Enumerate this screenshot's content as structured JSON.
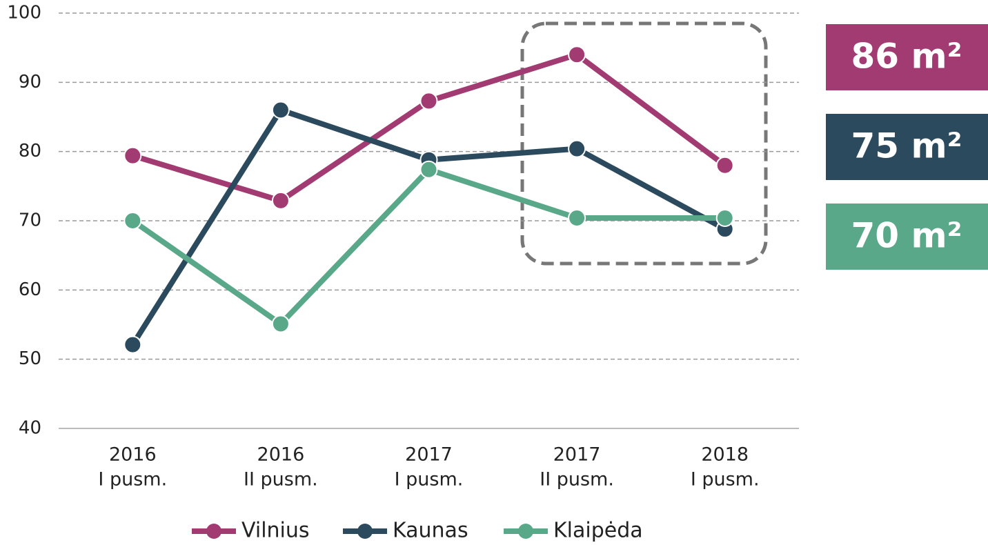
{
  "chart_data": {
    "type": "line",
    "categories": [
      [
        "2016",
        "I pusm."
      ],
      [
        "2016",
        "II pusm."
      ],
      [
        "2017",
        "I pusm."
      ],
      [
        "2017",
        "II pusm."
      ],
      [
        "2018",
        "I pusm."
      ]
    ],
    "series": [
      {
        "name": "Vilnius",
        "color": "#a23b72",
        "values": [
          79.4,
          72.9,
          87.3,
          94,
          78
        ]
      },
      {
        "name": "Kaunas",
        "color": "#2c4a5e",
        "values": [
          52.1,
          86,
          78.8,
          80.4,
          68.8
        ]
      },
      {
        "name": "Klaipėda",
        "color": "#5aa88a",
        "values": [
          70,
          55.1,
          77.4,
          70.4,
          70.4
        ]
      }
    ],
    "ylim": [
      40,
      100
    ],
    "yticks": [
      40,
      50,
      60,
      70,
      80,
      90,
      100
    ],
    "grid": true,
    "legend": "bottom",
    "annotations": [
      {
        "text": "86 m²",
        "color": "#a23b72"
      },
      {
        "text": "75 m²",
        "color": "#2c4a5e"
      },
      {
        "text": "70 m²",
        "color": "#5aa88a"
      }
    ]
  }
}
